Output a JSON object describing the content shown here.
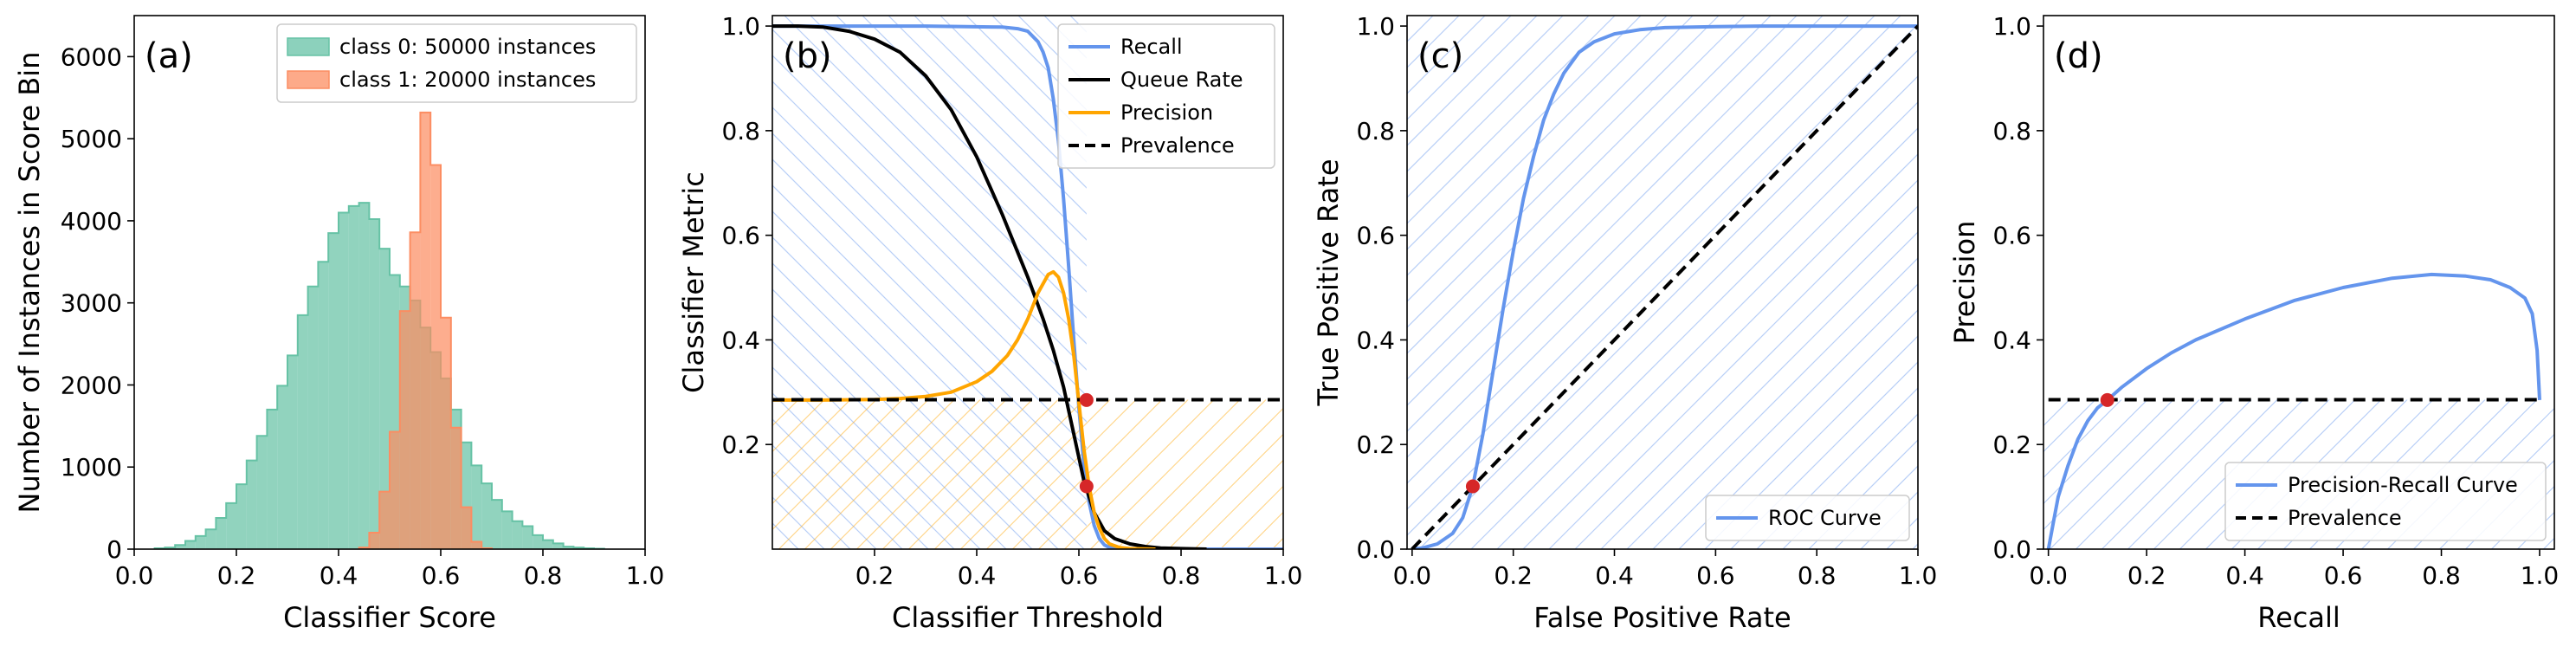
{
  "colors": {
    "class0": "#66c2a5",
    "class1": "#fc8d62",
    "recall": "#6495ed",
    "queue": "#000000",
    "precision": "#ffa500",
    "prevalence": "#000000",
    "marker": "#d62728"
  },
  "chart_data": [
    {
      "type": "bar",
      "panel_label": "(a)",
      "xlabel": "Classifier Score",
      "ylabel": "Number of Instances in Score Bin",
      "xlim": [
        0,
        1
      ],
      "ylim": [
        0,
        6500
      ],
      "xticks": [
        "0.0",
        "0.2",
        "0.4",
        "0.6",
        "0.8",
        "1.0"
      ],
      "yticks": [
        "0",
        "1000",
        "2000",
        "3000",
        "4000",
        "5000",
        "6000"
      ],
      "legend_position": "top-right",
      "bin_width": 0.02,
      "series": [
        {
          "name": "class 0: 50000 instances",
          "bin_starts": [
            0.04,
            0.06,
            0.08,
            0.1,
            0.12,
            0.14,
            0.16,
            0.18,
            0.2,
            0.22,
            0.24,
            0.26,
            0.28,
            0.3,
            0.32,
            0.34,
            0.36,
            0.38,
            0.4,
            0.42,
            0.44,
            0.46,
            0.48,
            0.5,
            0.52,
            0.54,
            0.56,
            0.58,
            0.6,
            0.62,
            0.64,
            0.66,
            0.68,
            0.7,
            0.72,
            0.74,
            0.76,
            0.78,
            0.8,
            0.82,
            0.84,
            0.86,
            0.88,
            0.9
          ],
          "values": [
            10,
            20,
            50,
            100,
            160,
            240,
            380,
            560,
            790,
            1080,
            1380,
            1700,
            1990,
            2360,
            2850,
            3200,
            3500,
            3850,
            4100,
            4180,
            4220,
            4020,
            3660,
            3340,
            3200,
            3030,
            2700,
            2400,
            2080,
            1700,
            1300,
            1020,
            800,
            600,
            460,
            340,
            280,
            170,
            110,
            70,
            30,
            20,
            10,
            5
          ]
        },
        {
          "name": "class 1: 20000 instances",
          "bin_starts": [
            0.44,
            0.46,
            0.48,
            0.5,
            0.52,
            0.54,
            0.56,
            0.58,
            0.6,
            0.62,
            0.64,
            0.66,
            0.68
          ],
          "values": [
            20,
            200,
            700,
            1430,
            2900,
            3860,
            5320,
            4680,
            2820,
            1480,
            510,
            90,
            10
          ]
        }
      ]
    },
    {
      "type": "line",
      "panel_label": "(b)",
      "xlabel": "Classifier Threshold",
      "ylabel": "Classifier Metric",
      "xlim": [
        0,
        1
      ],
      "ylim": [
        0,
        1.02
      ],
      "xticks": [
        "0.2",
        "0.4",
        "0.6",
        "0.8",
        "1.0"
      ],
      "yticks": [
        "0.2",
        "0.4",
        "0.6",
        "0.8",
        "1.0"
      ],
      "legend_position": "top-right",
      "series": [
        {
          "name": "Recall",
          "x": [
            0,
            0.3,
            0.45,
            0.48,
            0.5,
            0.52,
            0.53,
            0.54,
            0.55,
            0.56,
            0.57,
            0.58,
            0.59,
            0.6,
            0.61,
            0.62,
            0.63,
            0.64,
            0.65,
            0.66,
            0.68,
            0.7,
            0.8,
            1.0
          ],
          "y": [
            1.0,
            1.0,
            0.998,
            0.995,
            0.99,
            0.97,
            0.95,
            0.92,
            0.86,
            0.78,
            0.67,
            0.54,
            0.4,
            0.27,
            0.16,
            0.09,
            0.045,
            0.02,
            0.008,
            0.003,
            0.001,
            0,
            0,
            0
          ]
        },
        {
          "name": "Queue Rate",
          "x": [
            0,
            0.05,
            0.1,
            0.15,
            0.2,
            0.25,
            0.3,
            0.35,
            0.4,
            0.45,
            0.5,
            0.53,
            0.55,
            0.57,
            0.59,
            0.61,
            0.63,
            0.65,
            0.67,
            0.7,
            0.73,
            0.76,
            0.8,
            0.85
          ],
          "y": [
            1.0,
            1.0,
            0.998,
            0.99,
            0.975,
            0.95,
            0.905,
            0.84,
            0.75,
            0.64,
            0.52,
            0.44,
            0.38,
            0.31,
            0.22,
            0.13,
            0.07,
            0.035,
            0.02,
            0.01,
            0.005,
            0.002,
            0.001,
            0
          ]
        },
        {
          "name": "Precision",
          "x": [
            0,
            0.1,
            0.2,
            0.25,
            0.3,
            0.35,
            0.4,
            0.43,
            0.46,
            0.48,
            0.5,
            0.52,
            0.54,
            0.55,
            0.56,
            0.57,
            0.58,
            0.59,
            0.6,
            0.61,
            0.62,
            0.63,
            0.64,
            0.65,
            0.66,
            0.68,
            0.7,
            0.75
          ],
          "y": [
            0.285,
            0.285,
            0.286,
            0.288,
            0.292,
            0.3,
            0.32,
            0.34,
            0.37,
            0.4,
            0.44,
            0.49,
            0.525,
            0.53,
            0.52,
            0.49,
            0.44,
            0.37,
            0.28,
            0.19,
            0.12,
            0.07,
            0.04,
            0.02,
            0.01,
            0.003,
            0.001,
            0
          ]
        },
        {
          "name": "Prevalence",
          "dashed": true,
          "x": [
            0,
            1
          ],
          "y": [
            0.2857,
            0.2857
          ]
        }
      ],
      "markers": [
        {
          "x": 0.615,
          "y": 0.285
        },
        {
          "x": 0.615,
          "y": 0.12
        }
      ]
    },
    {
      "type": "line",
      "panel_label": "(c)",
      "xlabel": "False Positive Rate",
      "ylabel": "True Positive Rate",
      "xlim": [
        -0.01,
        1
      ],
      "ylim": [
        0,
        1.02
      ],
      "xticks": [
        "0.0",
        "0.2",
        "0.4",
        "0.6",
        "0.8",
        "1.0"
      ],
      "yticks": [
        "0.0",
        "0.2",
        "0.4",
        "0.6",
        "0.8",
        "1.0"
      ],
      "legend_position": "bottom-right",
      "series": [
        {
          "name": "ROC Curve",
          "x": [
            0,
            0.02,
            0.05,
            0.08,
            0.1,
            0.12,
            0.14,
            0.16,
            0.18,
            0.2,
            0.22,
            0.24,
            0.26,
            0.28,
            0.3,
            0.33,
            0.36,
            0.4,
            0.45,
            0.5,
            0.6,
            0.7,
            0.8,
            1.0
          ],
          "y": [
            0,
            0.002,
            0.01,
            0.03,
            0.06,
            0.12,
            0.22,
            0.34,
            0.46,
            0.57,
            0.67,
            0.75,
            0.82,
            0.87,
            0.91,
            0.95,
            0.97,
            0.985,
            0.993,
            0.997,
            0.999,
            1,
            1,
            1
          ]
        },
        {
          "dashed": true,
          "x": [
            0,
            1
          ],
          "y": [
            0,
            1
          ]
        }
      ],
      "markers": [
        {
          "x": 0.12,
          "y": 0.12
        }
      ]
    },
    {
      "type": "line",
      "panel_label": "(d)",
      "xlabel": "Recall",
      "ylabel": "Precision",
      "xlim": [
        -0.01,
        1.03
      ],
      "ylim": [
        0,
        1.02
      ],
      "xticks": [
        "0.0",
        "0.2",
        "0.4",
        "0.6",
        "0.8",
        "1.0"
      ],
      "yticks": [
        "0.0",
        "0.2",
        "0.4",
        "0.6",
        "0.8",
        "1.0"
      ],
      "legend_position": "bottom-right",
      "series": [
        {
          "name": "Precision-Recall Curve",
          "x": [
            0,
            0.01,
            0.02,
            0.04,
            0.06,
            0.08,
            0.1,
            0.12,
            0.15,
            0.2,
            0.25,
            0.3,
            0.4,
            0.5,
            0.6,
            0.7,
            0.78,
            0.85,
            0.9,
            0.94,
            0.97,
            0.985,
            0.995,
            1.0
          ],
          "y": [
            0,
            0.05,
            0.1,
            0.16,
            0.21,
            0.245,
            0.27,
            0.285,
            0.31,
            0.345,
            0.375,
            0.4,
            0.44,
            0.475,
            0.5,
            0.518,
            0.525,
            0.522,
            0.515,
            0.5,
            0.48,
            0.45,
            0.38,
            0.285
          ]
        },
        {
          "name": "Prevalence",
          "dashed": true,
          "x": [
            0,
            1
          ],
          "y": [
            0.2857,
            0.2857
          ]
        }
      ],
      "markers": [
        {
          "x": 0.12,
          "y": 0.285
        }
      ]
    }
  ]
}
